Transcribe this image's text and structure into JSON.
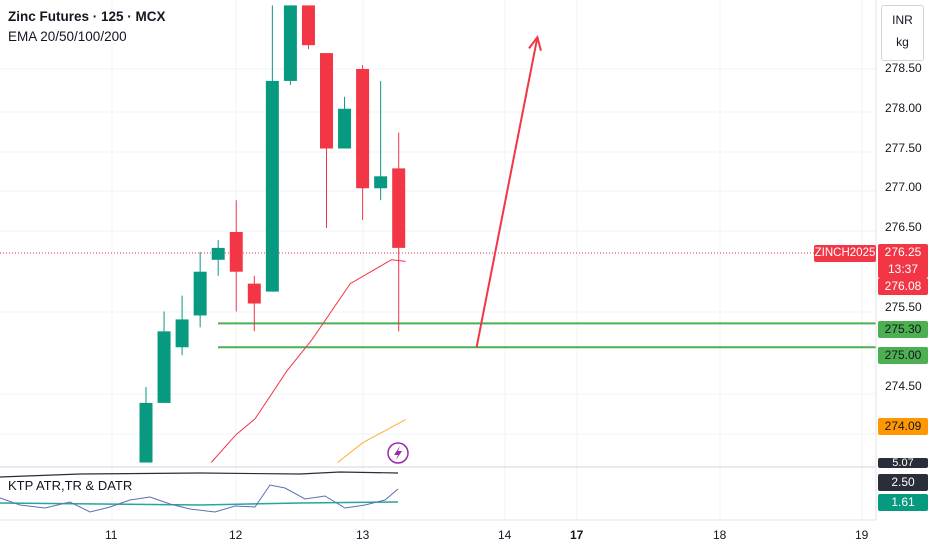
{
  "header": {
    "symbol_line": "Zinc Futures · 125 · MCX",
    "indicator_line": "EMA 20/50/100/200"
  },
  "units": {
    "currency": "INR",
    "unit": "kg"
  },
  "price_axis": {
    "ticks": [
      "278.50",
      "278.00",
      "277.50",
      "277.00",
      "276.50",
      "275.50",
      "274.50"
    ]
  },
  "date_axis": {
    "ticks": [
      "11",
      "12",
      "13",
      "14",
      "17",
      "18",
      "19"
    ]
  },
  "last_price": {
    "symbol": "ZINCH2025",
    "price": "276.25",
    "countdown": "13:37"
  },
  "price_labels": {
    "ema_fast": "276.08",
    "level_upper": "275.30",
    "level_lower": "275.00",
    "ema_slow": "274.09"
  },
  "indicator_panel": {
    "title": "KTP ATR,TR & DATR",
    "value_top": "5.07",
    "value_mid": "2.50",
    "value_low": "1.61"
  },
  "colors": {
    "up": "#089981",
    "down": "#f23645",
    "level": "#4caf50",
    "ema_slow": "#ff9800",
    "arrow": "#f23645",
    "indicator_value_bg": "#2a2e39"
  },
  "chart_data": {
    "type": "candlestick",
    "y_range": [
      273.55,
      279.3
    ],
    "candles": [
      {
        "o": 273.55,
        "h": 274.5,
        "l": 273.55,
        "c": 274.3
      },
      {
        "o": 274.3,
        "h": 275.45,
        "l": 274.3,
        "c": 275.2
      },
      {
        "o": 275.0,
        "h": 275.65,
        "l": 274.9,
        "c": 275.35
      },
      {
        "o": 275.4,
        "h": 276.2,
        "l": 275.25,
        "c": 275.95
      },
      {
        "o": 276.1,
        "h": 276.35,
        "l": 275.9,
        "c": 276.25
      },
      {
        "o": 276.45,
        "h": 276.85,
        "l": 275.45,
        "c": 275.95
      },
      {
        "o": 275.8,
        "h": 275.9,
        "l": 275.2,
        "c": 275.55
      },
      {
        "o": 275.7,
        "h": 279.3,
        "l": 275.7,
        "c": 278.35
      },
      {
        "o": 278.35,
        "h": 279.3,
        "l": 278.3,
        "c": 279.3
      },
      {
        "o": 279.3,
        "h": 279.3,
        "l": 278.75,
        "c": 278.8
      },
      {
        "o": 278.7,
        "h": 278.7,
        "l": 276.5,
        "c": 277.5
      },
      {
        "o": 277.5,
        "h": 278.15,
        "l": 277.5,
        "c": 278.0
      },
      {
        "o": 278.5,
        "h": 278.55,
        "l": 276.6,
        "c": 277.0
      },
      {
        "o": 277.0,
        "h": 278.35,
        "l": 276.85,
        "c": 277.15
      },
      {
        "o": 277.25,
        "h": 277.7,
        "l": 275.2,
        "c": 276.25
      }
    ],
    "horizontal_levels": [
      275.3,
      275.0
    ],
    "ema_fast_points": [
      [
        11.8,
        273.55
      ],
      [
        12.0,
        273.9
      ],
      [
        12.15,
        274.1
      ],
      [
        12.4,
        274.7
      ],
      [
        12.6,
        275.1
      ],
      [
        12.9,
        275.8
      ],
      [
        13.2,
        276.1
      ],
      [
        13.3,
        276.08
      ]
    ],
    "ema_slow_points": [
      [
        12.8,
        273.55
      ],
      [
        13.0,
        273.8
      ],
      [
        13.3,
        274.09
      ]
    ],
    "projection_arrow": {
      "from": [
        13.8,
        275.0
      ],
      "to": [
        14.45,
        278.9
      ]
    }
  }
}
